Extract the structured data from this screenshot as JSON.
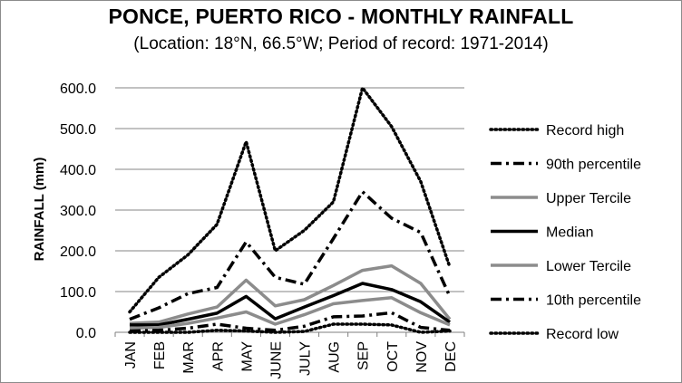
{
  "chart_data": {
    "type": "line",
    "title": "PONCE, PUERTO RICO - MONTHLY RAINFALL",
    "subtitle": "(Location: 18°N, 66.5°W; Period of record: 1971-2014)",
    "ylabel": "RAINFALL (mm)",
    "xlabel": "",
    "categories": [
      "JAN",
      "FEB",
      "MAR",
      "APR",
      "MAY",
      "JUNE",
      "JULY",
      "AUG",
      "SEP",
      "OCT",
      "NOV",
      "DEC"
    ],
    "ylim": [
      0,
      600
    ],
    "yticks": [
      0,
      100,
      200,
      300,
      400,
      500,
      600
    ],
    "ytick_labels": [
      "0.0",
      "100.0",
      "200.0",
      "300.0",
      "400.0",
      "500.0",
      "600.0"
    ],
    "grid": "horizontal",
    "legend_position": "right",
    "series": [
      {
        "name": "Record high",
        "style": "dotted",
        "color": "#000000",
        "values": [
          50,
          135,
          190,
          265,
          468,
          200,
          250,
          320,
          600,
          505,
          370,
          160
        ]
      },
      {
        "name": "90th percentile",
        "style": "dashdot",
        "color": "#000000",
        "values": [
          32,
          60,
          95,
          110,
          222,
          135,
          118,
          230,
          345,
          280,
          245,
          88
        ]
      },
      {
        "name": "Upper Tercile",
        "style": "solid",
        "color": "#8c8c8c",
        "values": [
          22,
          25,
          45,
          62,
          128,
          65,
          80,
          115,
          152,
          163,
          120,
          32
        ]
      },
      {
        "name": "Median",
        "style": "solid",
        "color": "#000000",
        "values": [
          18,
          18,
          32,
          47,
          88,
          33,
          62,
          90,
          120,
          105,
          75,
          25
        ]
      },
      {
        "name": "Lower Tercile",
        "style": "solid",
        "color": "#8c8c8c",
        "values": [
          10,
          12,
          22,
          35,
          50,
          20,
          43,
          70,
          78,
          85,
          48,
          18
        ]
      },
      {
        "name": "10th percentile",
        "style": "dashdot",
        "color": "#000000",
        "values": [
          3,
          5,
          10,
          20,
          10,
          5,
          15,
          38,
          40,
          48,
          12,
          5
        ]
      },
      {
        "name": "Record low",
        "style": "dotted",
        "color": "#000000",
        "values": [
          0,
          0,
          0,
          5,
          3,
          0,
          2,
          20,
          20,
          18,
          0,
          3
        ]
      }
    ]
  }
}
